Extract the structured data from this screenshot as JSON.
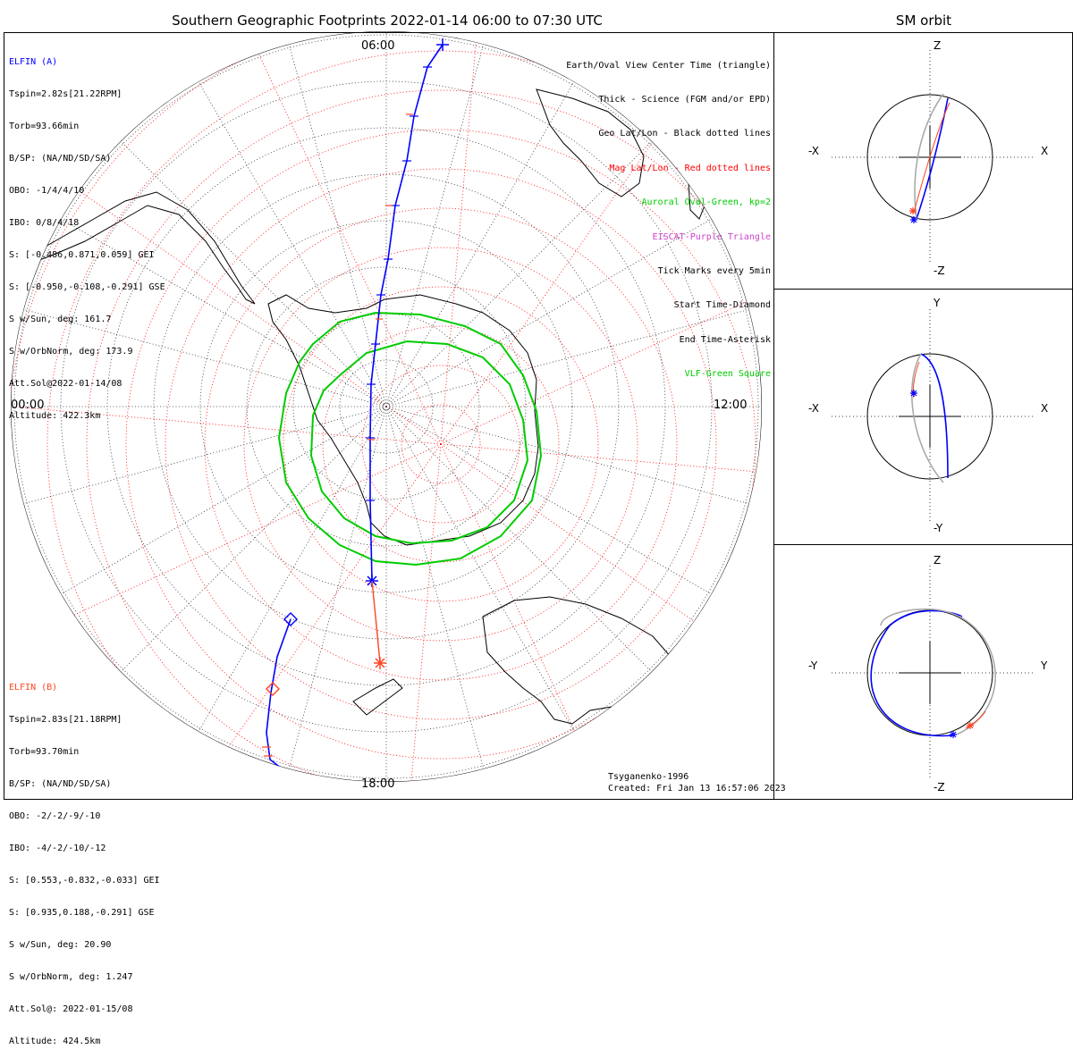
{
  "title": "Southern Geographic Footprints 2022-01-14 06:00 to 07:30 UTC",
  "sm_title": "SM orbit",
  "colors": {
    "elfin_a": "#0000ff",
    "elfin_b": "#ff4422",
    "aurora": "#00cc00",
    "eiscat": "#cc44cc",
    "grid_black": "#333333",
    "grid_red": "#ff0000",
    "gray": "#aaaaaa"
  },
  "hours": {
    "top": "06:00",
    "left": "00:00",
    "right": "12:00",
    "bottom": "18:00"
  },
  "elfin_a": {
    "name": "ELFIN (A)",
    "lines": [
      "Tspin=2.82s[21.22RPM]",
      "Torb=93.66min",
      "B/SP: (NA/ND/SD/SA)",
      "OBO: -1/4/4/10",
      "IBO: 0/8/4/18",
      "S: [-0.486,0.871,0.059] GEI",
      "S: [-0.950,-0.108,-0.291] GSE",
      "S w/Sun, deg: 161.7",
      "S w/OrbNorm, deg: 173.9",
      "Att.Sol@2022-01-14/08",
      "Altitude: 422.3km"
    ]
  },
  "elfin_b": {
    "name": "ELFIN (B)",
    "lines": [
      "Tspin=2.83s[21.18RPM]",
      "Torb=93.70min",
      "B/SP: (NA/ND/SD/SA)",
      "OBO: -2/-2/-9/-10",
      "IBO: -4/-2/-10/-12",
      "S: [0.553,-0.832,-0.033] GEI",
      "S: [0.935,0.188,-0.291] GSE",
      "S w/Sun, deg: 20.90",
      "S w/OrbNorm, deg: 1.247",
      "Att.Sol@: 2022-01-15/08",
      "Altitude: 424.5km"
    ]
  },
  "legend": [
    {
      "text": "Earth/Oval View Center Time (triangle)",
      "color": "#000000"
    },
    {
      "text": "Thick - Science (FGM and/or EPD)",
      "color": "#000000"
    },
    {
      "text": "Geo Lat/Lon - Black dotted lines",
      "color": "#000000"
    },
    {
      "text": "Mag Lat/Lon - Red dotted lines",
      "color": "#ff0000"
    },
    {
      "text": "Auroral Oval-Green, kp=2",
      "color": "#00cc00"
    },
    {
      "text": "EISCAT-Purple Triangle",
      "color": "#cc44cc"
    },
    {
      "text": "Tick Marks every 5min",
      "color": "#000000"
    },
    {
      "text": "Start Time-Diamond",
      "color": "#000000"
    },
    {
      "text": "End Time-Asterisk",
      "color": "#000000"
    },
    {
      "text": "VLF-Green Square",
      "color": "#00cc00"
    }
  ],
  "footer": {
    "model": "Tsyganenko-1996",
    "created": "Created: Fri Jan 13 16:57:06 2023"
  },
  "sm_panels": [
    {
      "up": "Z",
      "down": "-Z",
      "left": "-X",
      "right": "X"
    },
    {
      "up": "Y",
      "down": "-Y",
      "left": "-X",
      "right": "X"
    },
    {
      "up": "Z",
      "down": "-Z",
      "left": "-Y",
      "right": "Y"
    }
  ]
}
